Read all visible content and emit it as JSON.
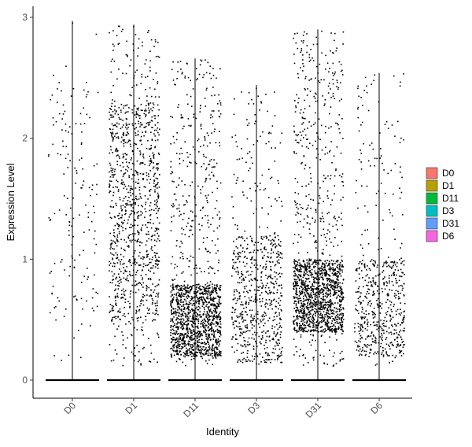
{
  "chart_data": {
    "type": "violin-jitter",
    "xlabel": "Identity",
    "ylabel": "Expression Level",
    "ylim": [
      -0.15,
      3.05
    ],
    "yticks": [
      0,
      1,
      2,
      3
    ],
    "categories": [
      "D0",
      "D1",
      "D11",
      "D3",
      "D31",
      "D6"
    ],
    "series": [
      {
        "name": "D0",
        "max": 2.97,
        "color": "#F8766D",
        "nonzero_points": 160,
        "dense_low": 0.4,
        "dense_high": 2.5
      },
      {
        "name": "D1",
        "max": 2.94,
        "color": "#B79F00",
        "nonzero_points": 1100,
        "dense_low": 0.5,
        "dense_high": 2.3
      },
      {
        "name": "D11",
        "max": 2.66,
        "color": "#00BA38",
        "nonzero_points": 1500,
        "dense_low": 0.2,
        "dense_high": 0.8
      },
      {
        "name": "D3",
        "max": 2.44,
        "color": "#00BFC4",
        "nonzero_points": 700,
        "dense_low": 0.15,
        "dense_high": 1.2
      },
      {
        "name": "D31",
        "max": 2.9,
        "color": "#619CFF",
        "nonzero_points": 1600,
        "dense_low": 0.4,
        "dense_high": 1.0
      },
      {
        "name": "D6",
        "max": 2.54,
        "color": "#F564E3",
        "nonzero_points": 600,
        "dense_low": 0.2,
        "dense_high": 1.0
      }
    ],
    "legend": {
      "position": "right",
      "items": [
        "D0",
        "D1",
        "D11",
        "D3",
        "D31",
        "D6"
      ]
    },
    "grid": false
  }
}
